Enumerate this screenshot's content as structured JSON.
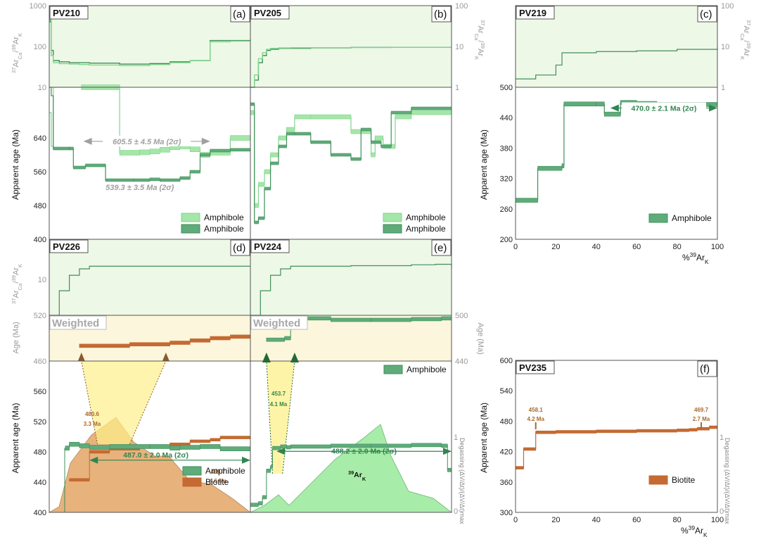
{
  "colors": {
    "amph_dark": "#3f8f5a",
    "amph_light": "#7fd68d",
    "amph_fill": "#5fab7a",
    "amph_fill_light": "#a5e6a9",
    "biotite": "#c46a32",
    "gray_plateau": "#a0a0a0",
    "green_text": "#2f8550",
    "brown_text": "#a86a2c",
    "ca_bg": "#eef8e6",
    "weighted_bg": "#fbf6dc",
    "degas_brown": "#e7b27c",
    "degas_green": "#a8eca9"
  },
  "labels": {
    "ca_k_axis": "³⁷Ar_Ca/³⁹Ar_K",
    "apparent_age_axis": "Apparent age (Ma)",
    "age_axis": "Age (Ma)",
    "degassing_axis": "Degassing (ΔV/Δt)/(ΔV/Δt)max",
    "x_axis": "%³⁹Ar_K",
    "weighted": "Weighted",
    "argon_label": "³⁹Ar_K"
  },
  "chart_data": [
    {
      "type": "line",
      "panel": "(a)",
      "sample": "PV210",
      "ca_k": {
        "scale": "log",
        "ylim": [
          10,
          1000
        ],
        "ticks": [
          "1000",
          "100",
          "10"
        ],
        "series": [
          {
            "x": [
              0,
              0.5,
              1,
              2,
              5,
              10,
              15,
              20,
              35,
              50,
              60,
              70,
              80,
              90,
              100
            ],
            "values": [
              600,
              400,
              80,
              45,
              42,
              40,
              40,
              39,
              37,
              38,
              42,
              45,
              140,
              140,
              140
            ]
          },
          {
            "x": [
              0,
              0.5,
              1,
              2,
              5,
              10,
              15,
              20,
              35,
              50,
              60,
              70,
              80,
              90,
              100
            ],
            "values": [
              700,
              450,
              60,
              40,
              38,
              37,
              36,
              35,
              34,
              36,
              40,
              45,
              130,
              135,
              135
            ]
          }
        ]
      },
      "age": {
        "ylim": [
          400,
          760
        ],
        "ticks": [
          "640",
          "560",
          "480",
          "400"
        ],
        "series": [
          {
            "name": "Amphibole",
            "style": "light",
            "x": [
              0,
              1,
              2,
              16,
              35,
              45,
              50,
              55,
              60,
              65,
              70,
              75,
              80,
              90,
              100
            ],
            "values": [
              700,
              620,
              760,
              760,
              605,
              606,
              608,
              612,
              618,
              620,
              613,
              600,
              605,
              640,
              640
            ]
          },
          {
            "name": "Amphibole",
            "style": "dark",
            "x": [
              0,
              1,
              2,
              10,
              12,
              18,
              28,
              42,
              50,
              55,
              65,
              70,
              75,
              80,
              90,
              100
            ],
            "values": [
              760,
              740,
              615,
              615,
              570,
              575,
              540,
              540,
              542,
              540,
              545,
              560,
              600,
              610,
              612,
              612
            ]
          }
        ],
        "plateaus": [
          {
            "label": "605.5 ± 4.5 Ma (2σ)",
            "from": 17,
            "to": 80,
            "y": 632
          },
          {
            "label": "539.3 ± 3.5 Ma (2σ)",
            "from": 27,
            "to": 63,
            "y": 523
          }
        ]
      },
      "legend": [
        "Amphibole",
        "Amphibole"
      ]
    },
    {
      "type": "line",
      "panel": "(b)",
      "sample": "PV205",
      "ca_k": {
        "scale": "log",
        "ylim": [
          1,
          100
        ],
        "ticks": [
          "100",
          "10",
          "1"
        ],
        "series": [
          {
            "x": [
              0,
              2,
              4,
              6,
              8,
              10,
              14,
              20,
              30,
              50,
              70,
              100
            ],
            "values": [
              1,
              1.5,
              4,
              6,
              8,
              8.5,
              9,
              9,
              9.2,
              9.5,
              9.5,
              9.5
            ]
          },
          {
            "x": [
              0,
              2,
              4,
              6,
              8,
              10,
              14,
              20,
              30,
              50,
              70,
              100
            ],
            "values": [
              1,
              2,
              5,
              7,
              8.5,
              9,
              9.2,
              9.3,
              9.3,
              9.4,
              9.5,
              9.5
            ]
          }
        ]
      },
      "age": {
        "ylim": [
          400,
          760
        ],
        "ticks": [],
        "series": [
          {
            "name": "Amphibole",
            "style": "light",
            "x": [
              0,
              2,
              4,
              7,
              10,
              14,
              18,
              22,
              30,
              50,
              60,
              62,
              66,
              72,
              80,
              100
            ],
            "values": [
              700,
              480,
              530,
              560,
              600,
              640,
              660,
              690,
              690,
              655,
              600,
              640,
              620,
              690,
              700,
              700
            ]
          },
          {
            "name": "Amphibole",
            "style": "dark",
            "x": [
              0,
              2,
              4,
              7,
              10,
              14,
              18,
              22,
              30,
              40,
              50,
              55,
              60,
              65,
              70,
              80,
              100
            ],
            "values": [
              720,
              440,
              450,
              520,
              580,
              620,
              650,
              650,
              630,
              600,
              590,
              660,
              630,
              620,
              700,
              710,
              710
            ]
          }
        ]
      },
      "legend": [
        "Amphibole",
        "Amphibole"
      ]
    },
    {
      "type": "line",
      "panel": "(c)",
      "sample": "PV219",
      "ca_k": {
        "scale": "log",
        "ylim": [
          1,
          100
        ],
        "ticks": [
          "100",
          "10",
          "1"
        ],
        "series": [
          {
            "x": [
              0,
              10,
              20,
              23,
              40,
              60,
              80,
              100
            ],
            "values": [
              1.6,
              2.0,
              3.5,
              7,
              7.5,
              7.8,
              8.5,
              9.5
            ]
          }
        ]
      },
      "age": {
        "ylim": [
          200,
          500
        ],
        "ticks": [
          "500",
          "440",
          "380",
          "320",
          "260",
          "200"
        ],
        "series": [
          {
            "name": "Amphibole",
            "style": "dark",
            "x": [
              0,
              11,
              23,
              24,
              40,
              44,
              52,
              60,
              70,
              80,
              100
            ],
            "values": [
              277,
              340,
              345,
              467,
              467,
              447,
              470,
              468,
              466,
              466,
              466
            ]
          }
        ],
        "plateaus": [
          {
            "label": "470.0 ± 2.1 Ma (2σ)",
            "from": 47,
            "to": 100,
            "y": 448
          }
        ]
      },
      "x_ticks": [
        "0",
        "20",
        "40",
        "60",
        "80",
        "100"
      ],
      "legend": [
        "Amphibole"
      ]
    },
    {
      "type": "line",
      "panel": "(d)",
      "sample": "PV226",
      "ca_k": {
        "scale": "log",
        "ticks": [
          "10"
        ],
        "series": [
          {
            "x": [
              0,
              5,
              10,
              15,
              20,
              30,
              50,
              70,
              100
            ],
            "values": [
              1,
              3,
              6,
              8,
              9,
              9,
              9,
              9,
              9
            ]
          }
        ]
      },
      "weighted_age": {
        "ylim": [
          460,
          520
        ],
        "ticks": [
          "520",
          "460"
        ],
        "series": [
          {
            "name": "Biotite",
            "x": [
              15,
              40,
              60,
              70,
              80,
              90,
              100
            ],
            "values": [
              480,
              482,
              484,
              487,
              490,
              492,
              494
            ]
          }
        ]
      },
      "age": {
        "ylim": [
          400,
          600
        ],
        "ticks": [
          "560",
          "520",
          "480",
          "440",
          "400"
        ],
        "series": [
          {
            "name": "Amphibole",
            "x": [
              8,
              10,
              15,
              20,
              30,
              50,
              60,
              65,
              75,
              85,
              100
            ],
            "values": [
              485,
              490,
              488,
              486,
              487,
              487,
              485,
              486,
              487,
              484,
              484
            ]
          },
          {
            "name": "Biotite",
            "x": [
              10,
              20,
              30,
              45,
              60,
              70,
              80,
              85,
              100
            ],
            "values": [
              443,
              480,
              484,
              487,
              490,
              494,
              496,
              499,
              499
            ]
          }
        ],
        "plateaus": [
          {
            "label": "487.0 ± 2.0 Ma (2σ)",
            "from": 20,
            "to": 100,
            "y": 469
          }
        ],
        "annotations": [
          {
            "label_value": "480.6",
            "label_error": "3.3 Ma",
            "x": 20
          },
          {
            "label_value": "499.7",
            "label_error": "4.6 Ma",
            "x": 92
          }
        ]
      },
      "legend": [
        "Amphibole",
        "Biotite"
      ]
    },
    {
      "type": "line",
      "panel": "(e)",
      "sample": "PV224",
      "ca_k": {
        "scale": "log",
        "ticks": [],
        "series": [
          {
            "x": [
              0,
              5,
              10,
              15,
              20,
              30,
              50,
              80,
              92,
              100
            ],
            "values": [
              1,
              3,
              6,
              8,
              9,
              9,
              9.2,
              9.6,
              9.8,
              8
            ]
          }
        ]
      },
      "weighted_age": {
        "ylim": [
          440,
          500
        ],
        "ticks": [
          "500",
          "440"
        ],
        "series": [
          {
            "name": "Amphibole",
            "x": [
              8,
              17,
              20,
              40,
              60,
              80,
              95,
              100
            ],
            "values": [
              468,
              470,
              496,
              494,
              494,
              495,
              496,
              494
            ]
          }
        ]
      },
      "age": {
        "ylim": [
          400,
          600
        ],
        "ticks": [],
        "series": [
          {
            "name": "Amphibole",
            "x": [
              0,
              4,
              6,
              8,
              10,
              11,
              15,
              18,
              20,
              40,
              60,
              80,
              95,
              98,
              100
            ],
            "values": [
              410,
              412,
              420,
              455,
              460,
              485,
              487,
              486,
              487,
              488,
              488,
              489,
              488,
              456,
              456
            ]
          }
        ],
        "plateaus": [
          {
            "label": "488.2 ± 2.0 Ma (2σ)",
            "from": 13,
            "to": 100,
            "y": 490
          }
        ],
        "annotations": [
          {
            "label_value": "453.7",
            "label_error": "4.1 Ma",
            "x": 8
          }
        ]
      },
      "degassing_ticks": [
        "1",
        "0"
      ],
      "legend": [
        "Amphibole"
      ]
    },
    {
      "type": "line",
      "panel": "(f)",
      "sample": "PV235",
      "age": {
        "ylim": [
          300,
          600
        ],
        "ticks": [
          "600",
          "540",
          "480",
          "420",
          "360",
          "300"
        ],
        "series": [
          {
            "name": "Biotite",
            "x": [
              0,
              2,
              4,
              10,
              20,
              40,
              60,
              80,
              86,
              90,
              96,
              100
            ],
            "values": [
              388,
              388,
              425,
              458,
              459,
              460,
              461,
              462,
              463,
              465,
              468,
              468
            ]
          }
        ],
        "annotations": [
          {
            "label_value": "458.1",
            "label_error": "4.2 Ma",
            "x": 10
          },
          {
            "label_value": "469.7",
            "label_error": "2.7 Ma",
            "x": 92
          }
        ]
      },
      "degassing_ticks": [
        "1",
        "0"
      ],
      "x_ticks": [
        "0",
        "20",
        "40",
        "60",
        "80",
        "100"
      ],
      "legend": [
        "Biotite"
      ]
    }
  ]
}
